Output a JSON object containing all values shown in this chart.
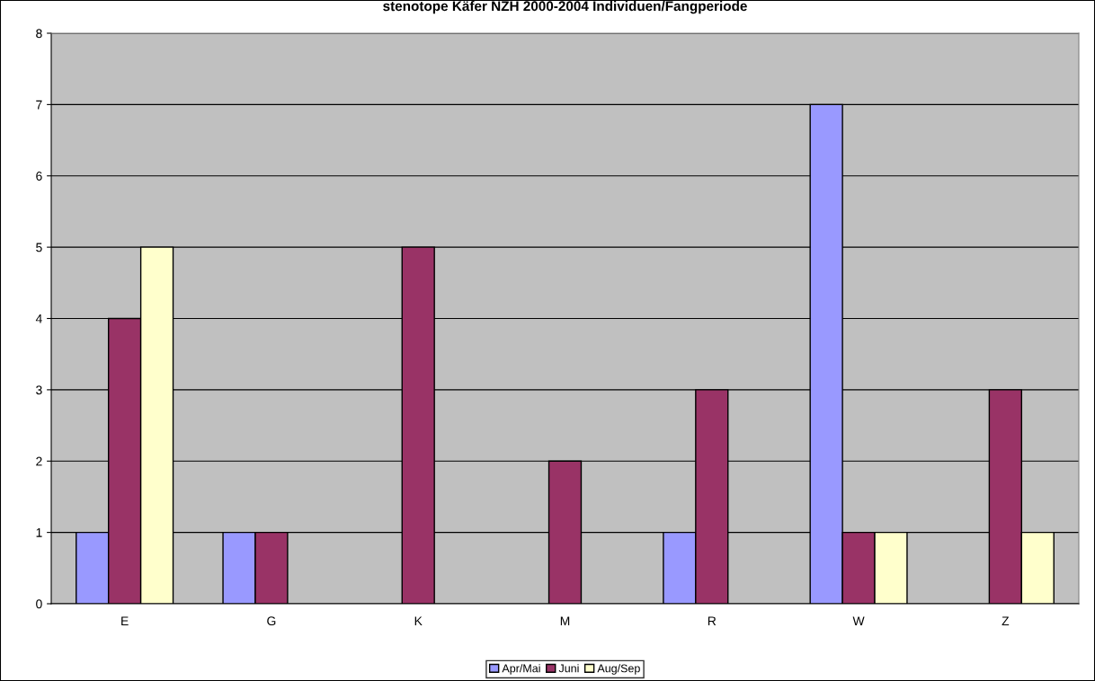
{
  "chart_data": {
    "type": "bar",
    "title": "stenotope Käfer NZH 2000-2004 Individuen/Fangperiode",
    "categories": [
      "E",
      "G",
      "K",
      "M",
      "R",
      "W",
      "Z"
    ],
    "series": [
      {
        "name": "Apr/Mai",
        "color": "#9999ff",
        "values": [
          1,
          1,
          0,
          0,
          1,
          7,
          0
        ]
      },
      {
        "name": "Juni",
        "color": "#993366",
        "values": [
          4,
          1,
          5,
          2,
          3,
          1,
          3
        ]
      },
      {
        "name": "Aug/Sep",
        "color": "#ffffcc",
        "values": [
          5,
          0,
          0,
          0,
          0,
          1,
          1
        ]
      }
    ],
    "ylim": [
      0,
      8
    ],
    "yticks": [
      0,
      1,
      2,
      3,
      4,
      5,
      6,
      7,
      8
    ],
    "grid": "y",
    "legend": "bottom"
  }
}
